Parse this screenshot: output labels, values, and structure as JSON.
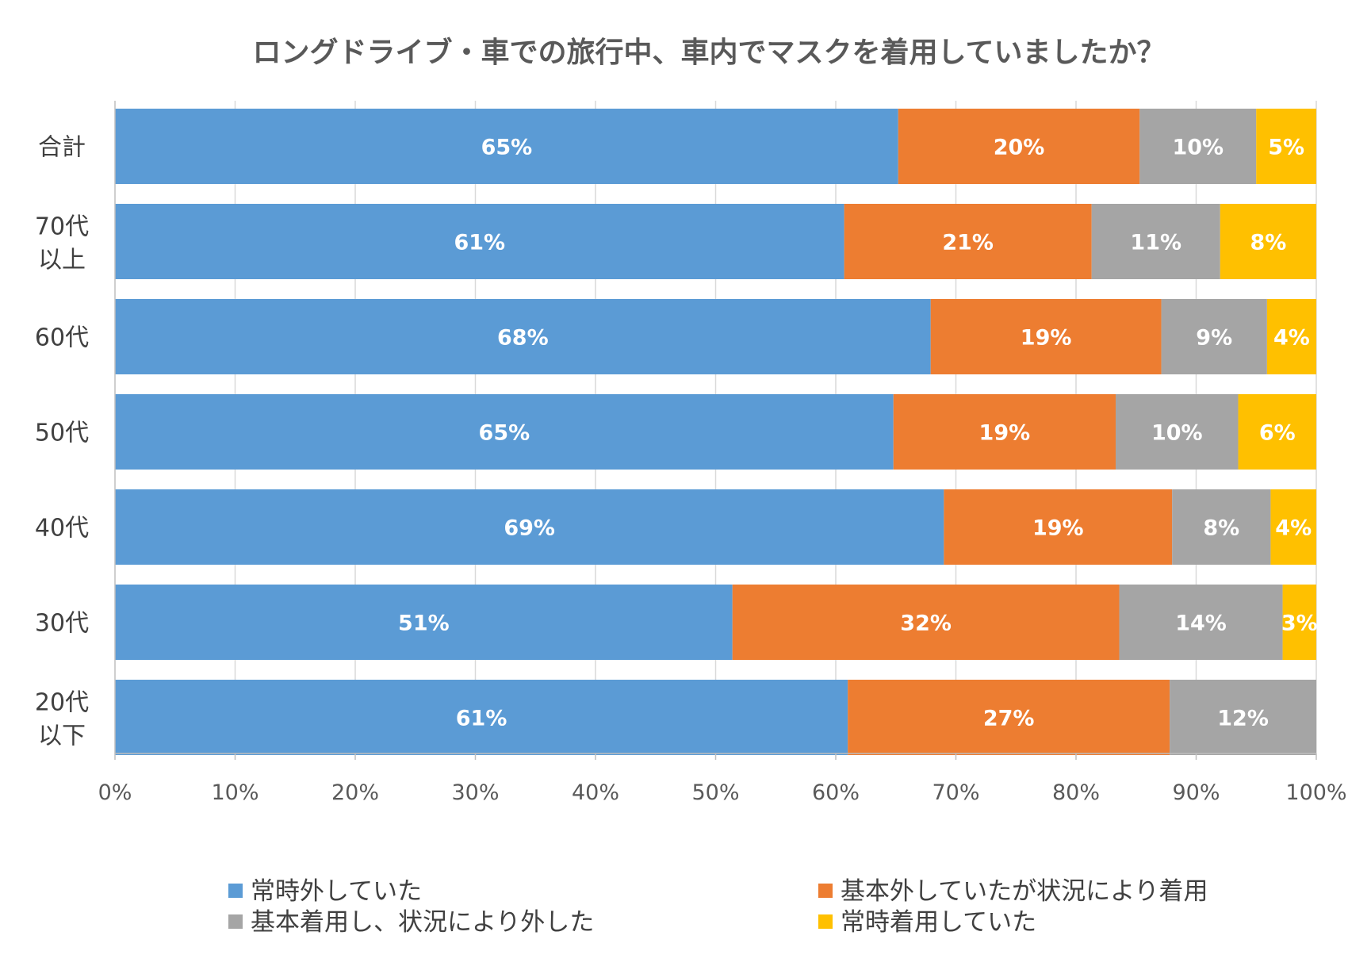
{
  "chart_data": {
    "type": "bar",
    "orientation": "horizontal",
    "stacked": "percent",
    "title": "ロングドライブ・車での旅行中、車内でマスクを着用していましたか？",
    "categories": [
      [
        "合計"
      ],
      [
        "70代",
        "以上"
      ],
      [
        "60代"
      ],
      [
        "50代"
      ],
      [
        "40代"
      ],
      [
        "30代"
      ],
      [
        "20代",
        "以下"
      ]
    ],
    "series": [
      {
        "name": "常時外していた",
        "color": "#5B9BD5",
        "values": [
          65.2,
          60.7,
          67.9,
          64.8,
          69.0,
          51.4,
          61.0
        ],
        "labels": [
          "65%",
          "61%",
          "68%",
          "65%",
          "69%",
          "51%",
          "61%"
        ]
      },
      {
        "name": "基本外していたが状況により着用",
        "color": "#ED7D31",
        "values": [
          20.1,
          20.6,
          19.2,
          18.5,
          19.0,
          32.2,
          26.8
        ],
        "labels": [
          "20%",
          "21%",
          "19%",
          "19%",
          "19%",
          "32%",
          "27%"
        ]
      },
      {
        "name": "基本着用し、状況により外した",
        "color": "#A5A5A5",
        "values": [
          9.7,
          10.7,
          8.8,
          10.2,
          8.2,
          13.6,
          12.2
        ],
        "labels": [
          "10%",
          "11%",
          "9%",
          "10%",
          "8%",
          "14%",
          "12%"
        ]
      },
      {
        "name": "常時着用していた",
        "color": "#FFC000",
        "values": [
          5.0,
          8.0,
          4.1,
          6.5,
          3.8,
          2.8,
          0
        ],
        "labels": [
          "5%",
          "8%",
          "4%",
          "6%",
          "4%",
          "3%",
          ""
        ]
      }
    ],
    "xlim": [
      0,
      100
    ],
    "xticks": [
      "0%",
      "10%",
      "20%",
      "30%",
      "40%",
      "50%",
      "60%",
      "70%",
      "80%",
      "90%",
      "100%"
    ],
    "grid": true,
    "legend_position": "bottom"
  }
}
